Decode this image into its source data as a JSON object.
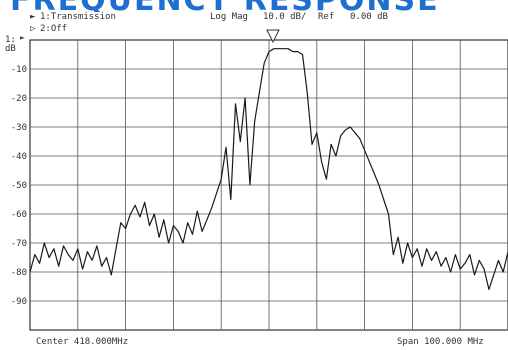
{
  "header": {
    "title_fragment": "FREQUENCY RESPONSE",
    "trace1": "1:Transmission",
    "format": "Log Mag",
    "scale": "10.0 dB/",
    "ref": "Ref",
    "ref_value": "0.00 dB",
    "trace2": "2:Off",
    "ref_marker": "1:",
    "unit": "dB",
    "center": "Center 418.000MHz",
    "span": "Span 100.000 MHz"
  },
  "colors": {
    "title": "#1e6fd0",
    "trace": "#1a1a1a",
    "grid": "#555555"
  },
  "chart_data": {
    "type": "line",
    "xlabel": "",
    "ylabel": "dB",
    "xlim": [
      368,
      468
    ],
    "ylim": [
      -100,
      0
    ],
    "yticks": [
      {
        "v": -10,
        "label": "-10"
      },
      {
        "v": -20,
        "label": "-20"
      },
      {
        "v": -30,
        "label": "-30"
      },
      {
        "v": -40,
        "label": "-40"
      },
      {
        "v": -50,
        "label": "-50"
      },
      {
        "v": -60,
        "label": "-60"
      },
      {
        "v": -70,
        "label": "-70"
      },
      {
        "v": -80,
        "label": "-80"
      },
      {
        "v": -90,
        "label": "-90"
      }
    ],
    "grid": true,
    "series": [
      {
        "x": [
          368,
          369,
          370,
          371,
          372,
          373,
          374,
          375,
          376,
          377,
          378,
          379,
          380,
          381,
          382,
          383,
          384,
          385,
          386,
          387,
          388,
          389,
          390,
          391,
          392,
          393,
          394,
          395,
          396,
          397,
          398,
          399,
          400,
          401,
          402,
          403,
          404,
          405,
          406,
          407,
          408,
          409,
          410,
          411,
          412,
          413,
          414,
          415,
          416,
          417,
          418,
          419,
          420,
          421,
          422,
          423,
          424,
          425,
          426,
          427,
          428,
          429,
          430,
          431,
          432,
          433,
          434,
          435,
          436,
          437,
          438,
          439,
          440,
          441,
          442,
          443,
          444,
          445,
          446,
          447,
          448,
          449,
          450,
          451,
          452,
          453,
          454,
          455,
          456,
          457,
          458,
          459,
          460,
          461,
          462,
          463,
          464,
          465,
          466,
          467,
          468
        ],
        "y": [
          -80,
          -74,
          -77,
          -70,
          -75,
          -72,
          -78,
          -71,
          -74,
          -76,
          -72,
          -79,
          -73,
          -76,
          -71,
          -78,
          -75,
          -81,
          -72,
          -63,
          -65,
          -60,
          -57,
          -61,
          -56,
          -64,
          -60,
          -68,
          -62,
          -70,
          -64,
          -66,
          -70,
          -63,
          -67,
          -59,
          -66,
          -62,
          -58,
          -53,
          -48,
          -37,
          -55,
          -22,
          -35,
          -20,
          -50,
          -28,
          -18,
          -8,
          -4,
          -3,
          -3,
          -3,
          -3,
          -4,
          -4,
          -5,
          -18,
          -36,
          -32,
          -42,
          -48,
          -36,
          -40,
          -33,
          -31,
          -30,
          -32,
          -34,
          -38,
          -42,
          -46,
          -50,
          -55,
          -60,
          -74,
          -68,
          -77,
          -70,
          -75,
          -72,
          -78,
          -72,
          -76,
          -73,
          -78,
          -75,
          -80,
          -74,
          -79,
          -77,
          -74,
          -81,
          -76,
          -79,
          -86,
          -81,
          -76,
          -80,
          -73
        ]
      }
    ]
  }
}
